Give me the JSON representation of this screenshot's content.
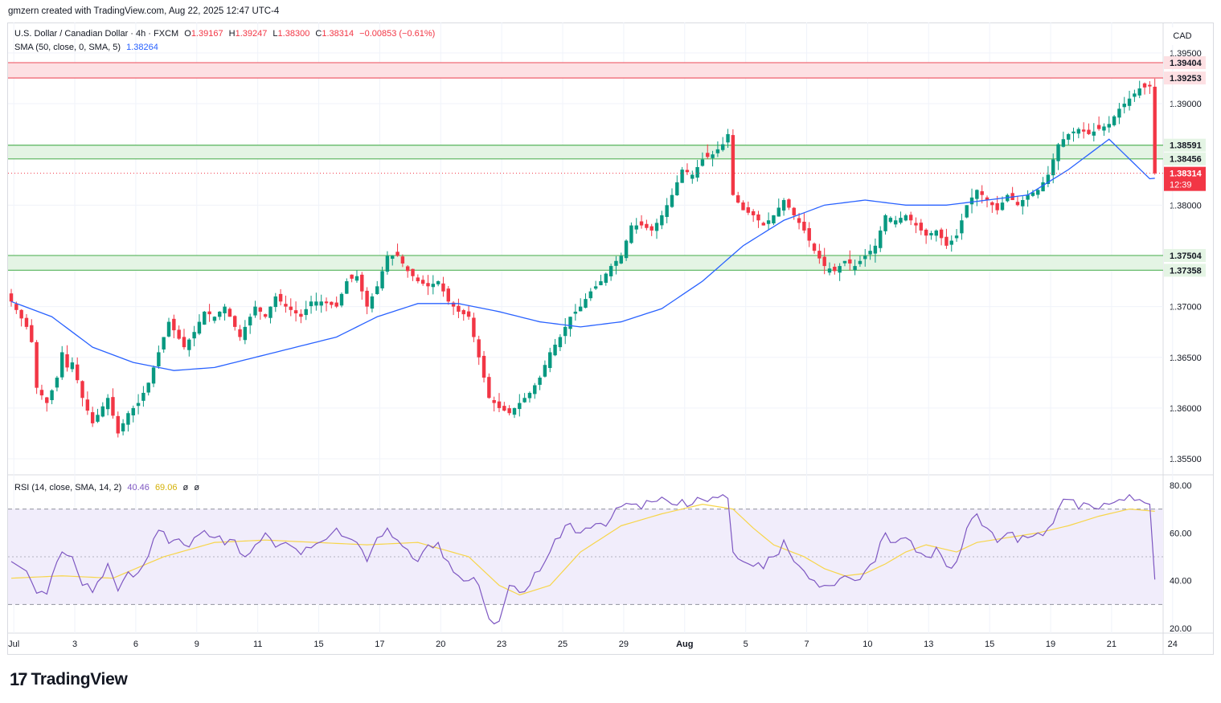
{
  "header": {
    "credit": "gmzern created with TradingView.com, Aug 22, 2025 12:47 UTC-4"
  },
  "legend": {
    "symbol": "U.S. Dollar / Canadian Dollar · 4h · FXCM",
    "o_label": "O",
    "o_value": "1.39167",
    "h_label": "H",
    "h_value": "1.39247",
    "l_label": "L",
    "l_value": "1.38300",
    "c_label": "C",
    "c_value": "1.38314",
    "change": "−0.00853 (−0.61%)",
    "sma_label": "SMA (50, close, 0, SMA, 5)",
    "sma_value": "1.38264",
    "rsi_label": "RSI (14, close, SMA, 14, 2)",
    "rsi_value": "40.46",
    "rsi_ma_value": "69.06",
    "rsi_extra1": "ø",
    "rsi_extra2": "ø"
  },
  "axis": {
    "currency": "CAD"
  },
  "footer": {
    "brand": "TradingView",
    "brand_mark": "17"
  },
  "colors": {
    "up": "#089981",
    "down": "#f23645",
    "sma": "#2962ff",
    "rsi": "#7e57c2",
    "rsi_ma": "#f7d54a",
    "resistance_fill": "#fde0e3",
    "resistance_line": "#f06c78",
    "support_fill": "#e4f4e4",
    "support_line": "#66bb6a"
  },
  "chart_data": {
    "type": "candlestick",
    "title": "U.S. Dollar / Canadian Dollar · 4h · FXCM",
    "ylim": [
      1.3535,
      1.398
    ],
    "y_ticks": [
      {
        "value": 1.395,
        "label": "1.39500"
      },
      {
        "value": 1.39,
        "label": "1.39000"
      },
      {
        "value": 1.38,
        "label": "1.38000"
      },
      {
        "value": 1.37,
        "label": "1.37000"
      },
      {
        "value": 1.365,
        "label": "1.36500"
      },
      {
        "value": 1.36,
        "label": "1.36000"
      },
      {
        "value": 1.355,
        "label": "1.35500"
      }
    ],
    "price_tags": [
      {
        "value": 1.39404,
        "label": "1.39404",
        "kind": "resistance"
      },
      {
        "value": 1.39253,
        "label": "1.39253",
        "kind": "resistance"
      },
      {
        "value": 1.38591,
        "label": "1.38591",
        "kind": "support"
      },
      {
        "value": 1.38456,
        "label": "1.38456",
        "kind": "support"
      },
      {
        "value": 1.37504,
        "label": "1.37504",
        "kind": "support"
      },
      {
        "value": 1.37358,
        "label": "1.37358",
        "kind": "support"
      }
    ],
    "last_price": {
      "value": 1.38314,
      "label": "1.38314",
      "countdown": "12:39"
    },
    "zones": [
      {
        "kind": "resistance",
        "low": 1.39253,
        "high": 1.39404
      },
      {
        "kind": "support",
        "low": 1.38456,
        "high": 1.38591
      },
      {
        "kind": "support",
        "low": 1.37358,
        "high": 1.37504
      }
    ],
    "x_labels": [
      "Jul",
      "3",
      "6",
      "9",
      "11",
      "15",
      "17",
      "20",
      "23",
      "25",
      "29",
      "Aug",
      "5",
      "7",
      "10",
      "13",
      "15",
      "19",
      "21",
      "24"
    ],
    "x_label_positions": [
      0.5,
      12.5,
      24.5,
      36.5,
      48.5,
      60.5,
      72.5,
      84.5,
      96.5,
      108.5,
      120.5,
      132.5,
      144.5,
      156.5,
      168.5,
      180.5,
      192.5,
      204.5,
      216.5,
      228.5
    ],
    "close_anchors": [
      [
        0,
        1.3705
      ],
      [
        3,
        1.368
      ],
      [
        4,
        1.3665
      ],
      [
        5,
        1.362
      ],
      [
        7,
        1.3605
      ],
      [
        9,
        1.363
      ],
      [
        10,
        1.3655
      ],
      [
        11,
        1.364
      ],
      [
        12,
        1.3645
      ],
      [
        14,
        1.361
      ],
      [
        16,
        1.3585
      ],
      [
        19,
        1.361
      ],
      [
        21,
        1.3575
      ],
      [
        23,
        1.3595
      ],
      [
        25,
        1.3605
      ],
      [
        27,
        1.3625
      ],
      [
        29,
        1.3655
      ],
      [
        31,
        1.3685
      ],
      [
        34,
        1.366
      ],
      [
        36,
        1.3675
      ],
      [
        38,
        1.3695
      ],
      [
        40,
        1.369
      ],
      [
        42,
        1.37
      ],
      [
        45,
        1.367
      ],
      [
        48,
        1.37
      ],
      [
        50,
        1.369
      ],
      [
        52,
        1.371
      ],
      [
        54,
        1.37
      ],
      [
        57,
        1.369
      ],
      [
        59,
        1.3705
      ],
      [
        61,
        1.3705
      ],
      [
        64,
        1.37
      ],
      [
        66,
        1.3725
      ],
      [
        68,
        1.373
      ],
      [
        70,
        1.37
      ],
      [
        72,
        1.372
      ],
      [
        74,
        1.375
      ],
      [
        76,
        1.375
      ],
      [
        78,
        1.3735
      ],
      [
        80,
        1.3725
      ],
      [
        82,
        1.372
      ],
      [
        84,
        1.3725
      ],
      [
        86,
        1.3705
      ],
      [
        88,
        1.3695
      ],
      [
        90,
        1.369
      ],
      [
        92,
        1.365
      ],
      [
        94,
        1.361
      ],
      [
        96,
        1.36
      ],
      [
        98,
        1.3595
      ],
      [
        100,
        1.3605
      ],
      [
        102,
        1.3615
      ],
      [
        104,
        1.363
      ],
      [
        106,
        1.3655
      ],
      [
        108,
        1.367
      ],
      [
        110,
        1.369
      ],
      [
        112,
        1.37
      ],
      [
        114,
        1.3715
      ],
      [
        116,
        1.3725
      ],
      [
        118,
        1.374
      ],
      [
        120,
        1.375
      ],
      [
        122,
        1.378
      ],
      [
        124,
        1.378
      ],
      [
        126,
        1.3775
      ],
      [
        128,
        1.379
      ],
      [
        130,
        1.381
      ],
      [
        132,
        1.3835
      ],
      [
        134,
        1.383
      ],
      [
        136,
        1.3845
      ],
      [
        138,
        1.385
      ],
      [
        140,
        1.386
      ],
      [
        141,
        1.387
      ],
      [
        142,
        1.381
      ],
      [
        144,
        1.3795
      ],
      [
        146,
        1.379
      ],
      [
        148,
        1.378
      ],
      [
        150,
        1.379
      ],
      [
        152,
        1.3805
      ],
      [
        154,
        1.379
      ],
      [
        156,
        1.3775
      ],
      [
        158,
        1.3755
      ],
      [
        160,
        1.374
      ],
      [
        162,
        1.3735
      ],
      [
        164,
        1.3745
      ],
      [
        166,
        1.374
      ],
      [
        168,
        1.375
      ],
      [
        170,
        1.376
      ],
      [
        172,
        1.379
      ],
      [
        174,
        1.3785
      ],
      [
        176,
        1.379
      ],
      [
        178,
        1.378
      ],
      [
        180,
        1.377
      ],
      [
        182,
        1.3775
      ],
      [
        184,
        1.376
      ],
      [
        186,
        1.377
      ],
      [
        188,
        1.38
      ],
      [
        190,
        1.3815
      ],
      [
        192,
        1.3805
      ],
      [
        194,
        1.3795
      ],
      [
        196,
        1.381
      ],
      [
        198,
        1.38
      ],
      [
        200,
        1.381
      ],
      [
        202,
        1.3815
      ],
      [
        204,
        1.383
      ],
      [
        206,
        1.386
      ],
      [
        208,
        1.387
      ],
      [
        210,
        1.3875
      ],
      [
        212,
        1.387
      ],
      [
        214,
        1.3875
      ],
      [
        216,
        1.388
      ],
      [
        218,
        1.3895
      ],
      [
        220,
        1.3905
      ],
      [
        222,
        1.3915
      ],
      [
        224,
        1.3917
      ],
      [
        225,
        1.38314
      ]
    ],
    "sma_anchors": [
      [
        0,
        1.3705
      ],
      [
        8,
        1.369
      ],
      [
        16,
        1.366
      ],
      [
        24,
        1.3645
      ],
      [
        32,
        1.3637
      ],
      [
        40,
        1.364
      ],
      [
        48,
        1.365
      ],
      [
        56,
        1.366
      ],
      [
        64,
        1.367
      ],
      [
        72,
        1.369
      ],
      [
        80,
        1.3703
      ],
      [
        88,
        1.3703
      ],
      [
        96,
        1.3695
      ],
      [
        104,
        1.3685
      ],
      [
        112,
        1.368
      ],
      [
        120,
        1.3685
      ],
      [
        128,
        1.3698
      ],
      [
        136,
        1.3725
      ],
      [
        144,
        1.376
      ],
      [
        152,
        1.3785
      ],
      [
        160,
        1.38
      ],
      [
        168,
        1.3805
      ],
      [
        176,
        1.38
      ],
      [
        184,
        1.38
      ],
      [
        192,
        1.3805
      ],
      [
        200,
        1.381
      ],
      [
        208,
        1.3835
      ],
      [
        216,
        1.3865
      ],
      [
        224,
        1.3826
      ]
    ],
    "rsi": {
      "ylim": [
        18,
        84
      ],
      "y_ticks": [
        {
          "value": 80,
          "label": "80.00"
        },
        {
          "value": 60,
          "label": "60.00"
        },
        {
          "value": 40,
          "label": "40.00"
        },
        {
          "value": 20,
          "label": "20.00"
        }
      ],
      "bands": [
        70,
        50,
        30
      ],
      "rsi_anchors": [
        [
          0,
          48
        ],
        [
          3,
          44
        ],
        [
          5,
          35
        ],
        [
          7,
          36
        ],
        [
          9,
          48
        ],
        [
          10,
          52
        ],
        [
          12,
          50
        ],
        [
          14,
          38
        ],
        [
          16,
          35
        ],
        [
          19,
          45
        ],
        [
          21,
          38
        ],
        [
          23,
          42
        ],
        [
          25,
          41
        ],
        [
          27,
          52
        ],
        [
          29,
          63
        ],
        [
          31,
          58
        ],
        [
          34,
          55
        ],
        [
          36,
          58
        ],
        [
          38,
          61
        ],
        [
          40,
          58
        ],
        [
          42,
          55
        ],
        [
          44,
          57
        ],
        [
          46,
          50
        ],
        [
          48,
          55
        ],
        [
          50,
          60
        ],
        [
          52,
          54
        ],
        [
          54,
          56
        ],
        [
          57,
          52
        ],
        [
          59,
          56
        ],
        [
          61,
          55
        ],
        [
          64,
          62
        ],
        [
          66,
          58
        ],
        [
          68,
          56
        ],
        [
          70,
          48
        ],
        [
          72,
          58
        ],
        [
          74,
          62
        ],
        [
          76,
          57
        ],
        [
          78,
          53
        ],
        [
          80,
          48
        ],
        [
          82,
          55
        ],
        [
          84,
          56
        ],
        [
          86,
          48
        ],
        [
          88,
          42
        ],
        [
          90,
          40
        ],
        [
          92,
          38
        ],
        [
          94,
          24
        ],
        [
          96,
          23
        ],
        [
          98,
          38
        ],
        [
          100,
          35
        ],
        [
          102,
          38
        ],
        [
          104,
          44
        ],
        [
          106,
          52
        ],
        [
          108,
          58
        ],
        [
          110,
          64
        ],
        [
          112,
          60
        ],
        [
          114,
          62
        ],
        [
          116,
          64
        ],
        [
          118,
          66
        ],
        [
          120,
          71
        ],
        [
          122,
          72
        ],
        [
          124,
          70
        ],
        [
          126,
          73
        ],
        [
          128,
          75
        ],
        [
          130,
          72
        ],
        [
          132,
          74
        ],
        [
          134,
          72
        ],
        [
          136,
          74
        ],
        [
          138,
          75
        ],
        [
          140,
          76
        ],
        [
          141,
          76
        ],
        [
          142,
          52
        ],
        [
          144,
          48
        ],
        [
          146,
          46
        ],
        [
          148,
          45
        ],
        [
          150,
          50
        ],
        [
          152,
          57
        ],
        [
          154,
          48
        ],
        [
          156,
          44
        ],
        [
          158,
          40
        ],
        [
          160,
          38
        ],
        [
          162,
          38
        ],
        [
          164,
          42
        ],
        [
          166,
          40
        ],
        [
          168,
          44
        ],
        [
          170,
          48
        ],
        [
          172,
          60
        ],
        [
          174,
          56
        ],
        [
          176,
          58
        ],
        [
          178,
          52
        ],
        [
          180,
          50
        ],
        [
          182,
          54
        ],
        [
          184,
          46
        ],
        [
          186,
          48
        ],
        [
          188,
          62
        ],
        [
          190,
          68
        ],
        [
          192,
          62
        ],
        [
          194,
          56
        ],
        [
          196,
          60
        ],
        [
          198,
          56
        ],
        [
          200,
          58
        ],
        [
          202,
          60
        ],
        [
          204,
          62
        ],
        [
          206,
          70
        ],
        [
          208,
          74
        ],
        [
          210,
          70
        ],
        [
          212,
          72
        ],
        [
          214,
          70
        ],
        [
          216,
          72
        ],
        [
          218,
          74
        ],
        [
          220,
          76
        ],
        [
          222,
          74
        ],
        [
          224,
          72
        ],
        [
          225,
          40.46
        ]
      ],
      "ma_anchors": [
        [
          0,
          41
        ],
        [
          10,
          42
        ],
        [
          20,
          41
        ],
        [
          30,
          50
        ],
        [
          40,
          56
        ],
        [
          50,
          57
        ],
        [
          60,
          56
        ],
        [
          70,
          55
        ],
        [
          80,
          56
        ],
        [
          90,
          50
        ],
        [
          96,
          38
        ],
        [
          100,
          34
        ],
        [
          106,
          38
        ],
        [
          112,
          52
        ],
        [
          120,
          63
        ],
        [
          128,
          68
        ],
        [
          136,
          72
        ],
        [
          142,
          70
        ],
        [
          146,
          62
        ],
        [
          150,
          55
        ],
        [
          156,
          50
        ],
        [
          160,
          45
        ],
        [
          164,
          42
        ],
        [
          168,
          43
        ],
        [
          172,
          47
        ],
        [
          176,
          52
        ],
        [
          180,
          55
        ],
        [
          186,
          52
        ],
        [
          190,
          56
        ],
        [
          196,
          58
        ],
        [
          202,
          60
        ],
        [
          208,
          63
        ],
        [
          214,
          67
        ],
        [
          220,
          70
        ],
        [
          225,
          69.06
        ]
      ]
    }
  }
}
